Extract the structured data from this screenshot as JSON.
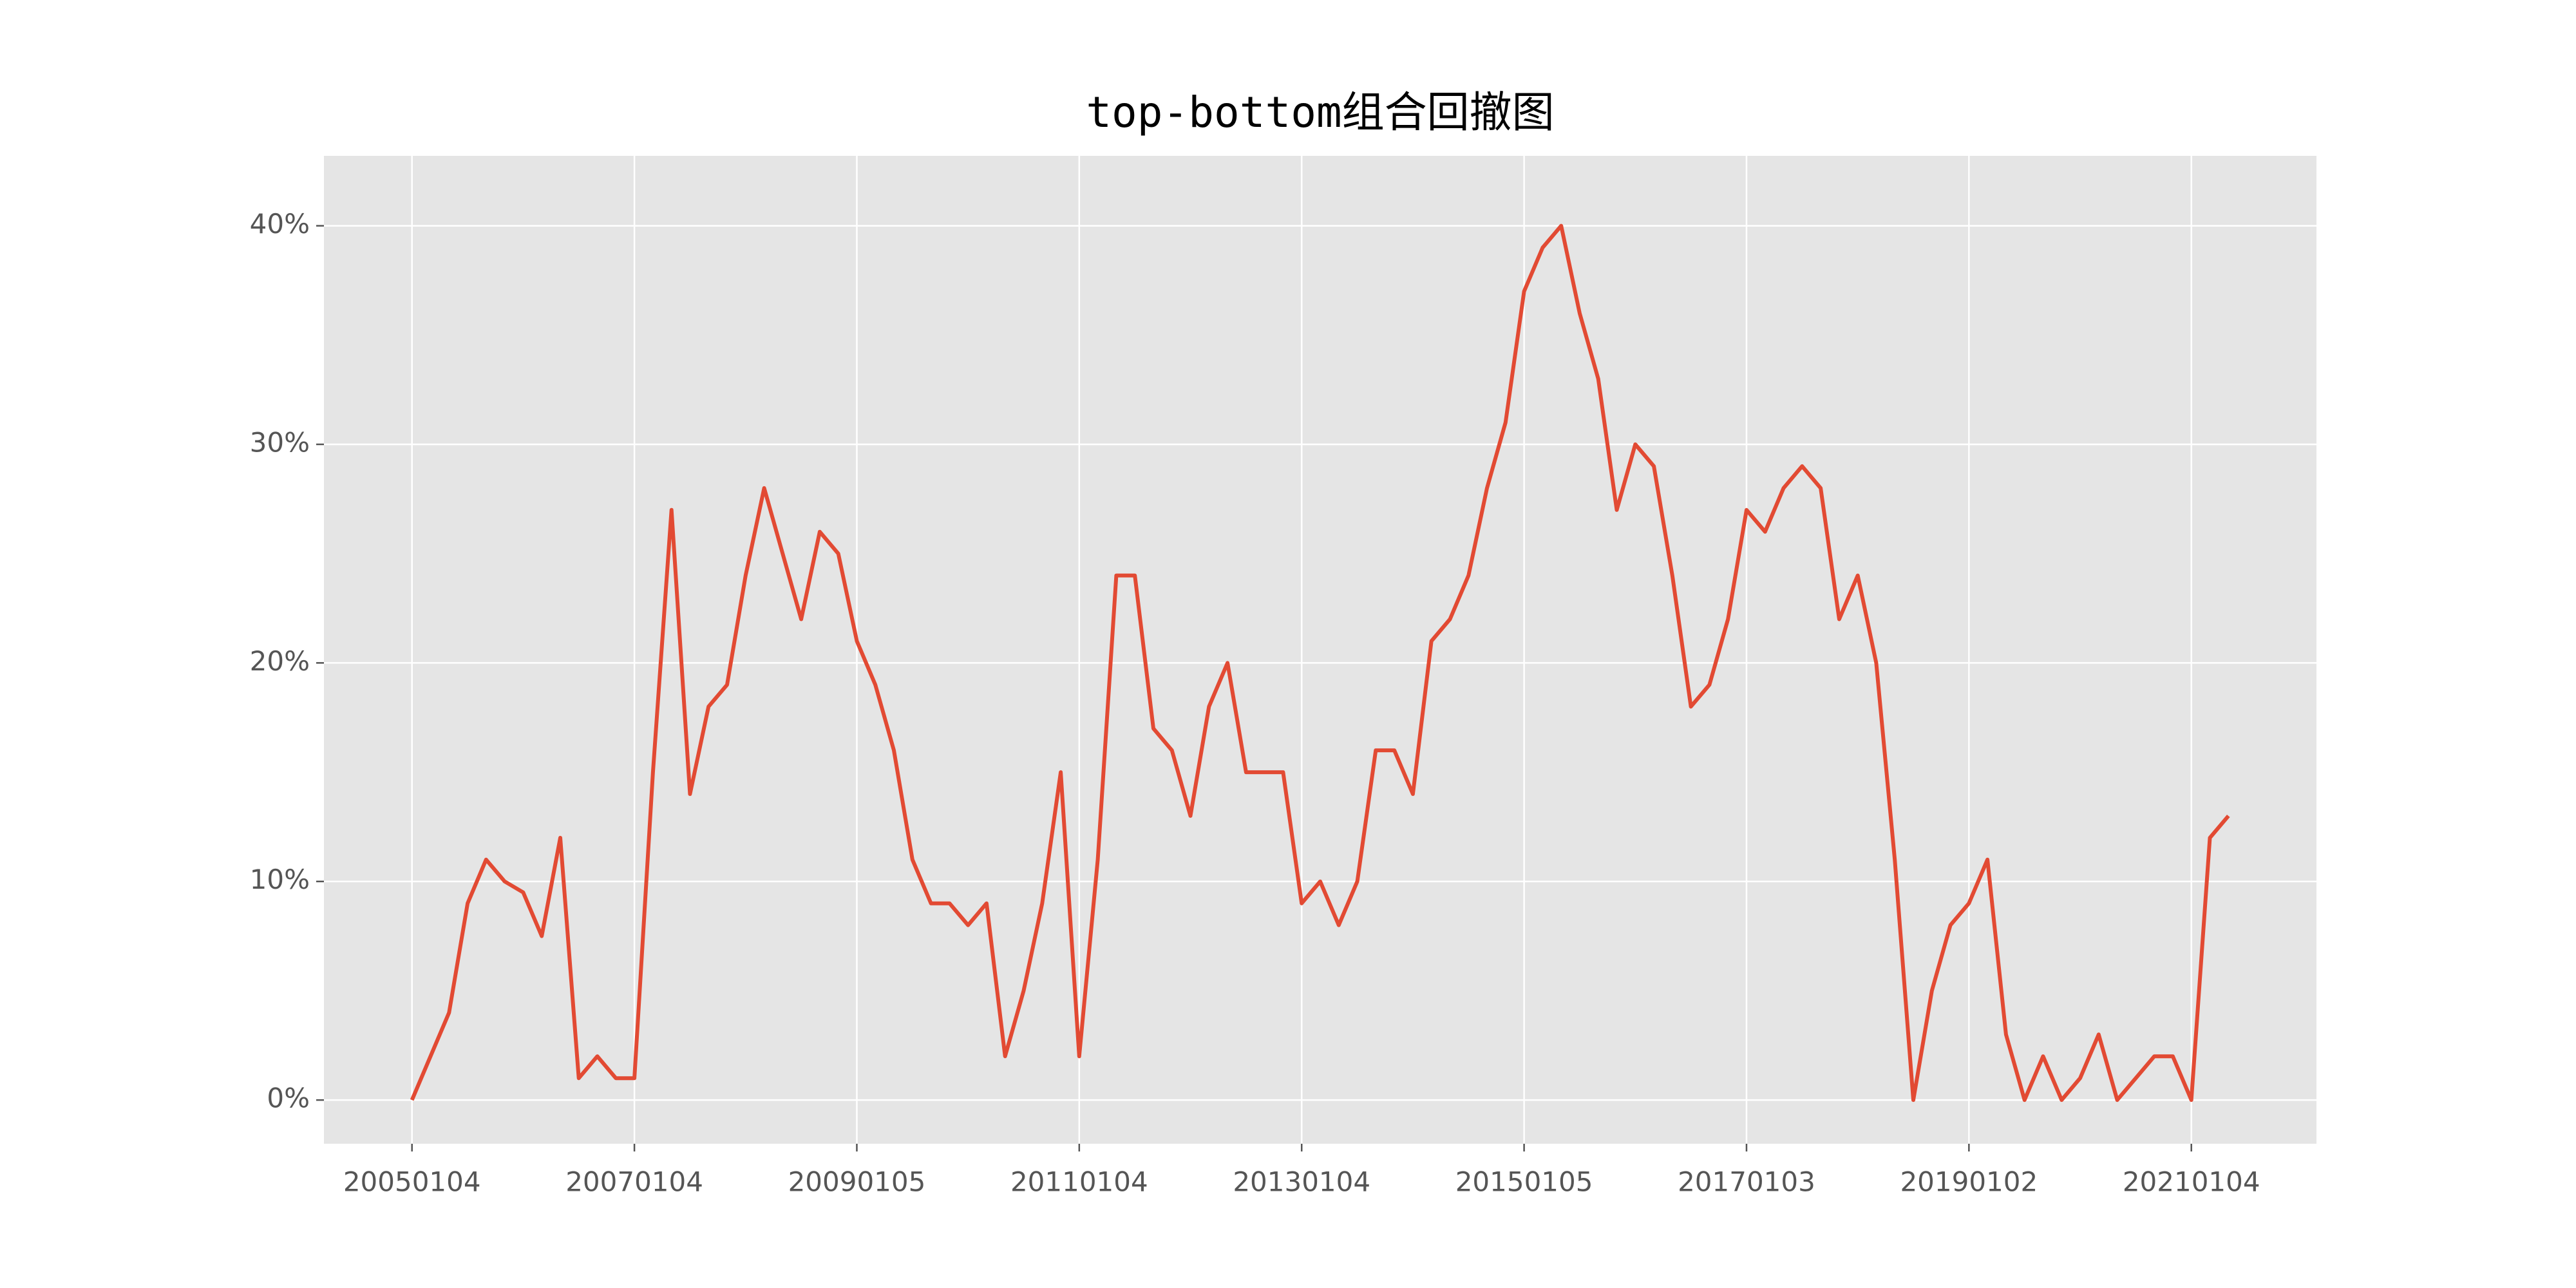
{
  "chart_data": {
    "type": "line",
    "title": "top-bottom组合回撤图",
    "categories": [
      "20050104",
      null,
      null,
      null,
      null,
      null,
      null,
      null,
      null,
      null,
      null,
      null,
      "20070104",
      null,
      null,
      null,
      null,
      null,
      null,
      null,
      null,
      null,
      null,
      null,
      "20090105",
      null,
      null,
      null,
      null,
      null,
      null,
      null,
      null,
      null,
      null,
      null,
      "20110104",
      null,
      null,
      null,
      null,
      null,
      null,
      null,
      null,
      null,
      null,
      null,
      "20130104",
      null,
      null,
      null,
      null,
      null,
      null,
      null,
      null,
      null,
      null,
      null,
      "20150105",
      null,
      null,
      null,
      null,
      null,
      null,
      null,
      null,
      null,
      null,
      null,
      "20170103",
      null,
      null,
      null,
      null,
      null,
      null,
      null,
      null,
      null,
      null,
      null,
      "20190102",
      null,
      null,
      null,
      null,
      null,
      null,
      null,
      null,
      null,
      null,
      null,
      "20210104",
      null,
      null
    ],
    "values": [
      0,
      2,
      4,
      9,
      11,
      10,
      9.5,
      7.5,
      12,
      1,
      2,
      1,
      1,
      15,
      27,
      14,
      18,
      19,
      24,
      28,
      25,
      22,
      26,
      25,
      21,
      19,
      16,
      11,
      9,
      9,
      8,
      9,
      2,
      5,
      9,
      15,
      2,
      11,
      24,
      24,
      17,
      16,
      13,
      18,
      20,
      15,
      15,
      15,
      9,
      10,
      8,
      10,
      16,
      16,
      14,
      21,
      22,
      24,
      28,
      31,
      37,
      39,
      40,
      36,
      33,
      27,
      30,
      29,
      24,
      18,
      19,
      22,
      27,
      26,
      28,
      29,
      28,
      22,
      24,
      20,
      11,
      0,
      5,
      8,
      9,
      11,
      3,
      0,
      2,
      0,
      1,
      3,
      0,
      1,
      2,
      2,
      0,
      12,
      13
    ],
    "color": "#e24a33",
    "ylim": [
      -2,
      43.2
    ],
    "yticks": [
      {
        "value": 0,
        "label": "0%"
      },
      {
        "value": 10,
        "label": "10%"
      },
      {
        "value": 20,
        "label": "20%"
      },
      {
        "value": 30,
        "label": "30%"
      },
      {
        "value": 40,
        "label": "40%"
      }
    ],
    "grid": true
  }
}
